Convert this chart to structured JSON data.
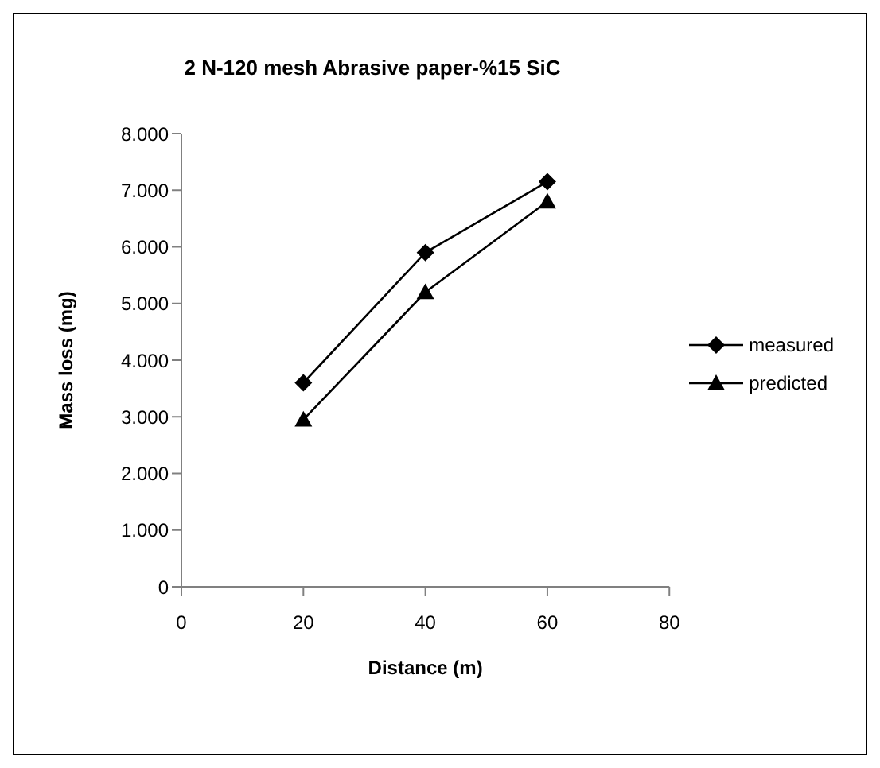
{
  "chart_data": {
    "type": "line",
    "title": "2 N-120 mesh Abrasive paper-%15 SiC",
    "xlabel": "Distance (m)",
    "ylabel": "Mass loss (mg)",
    "x": [
      20,
      40,
      60
    ],
    "series": [
      {
        "name": "measured",
        "color": "#000000",
        "values": [
          3600,
          5900,
          7150
        ],
        "marker": "diamond"
      },
      {
        "name": "predicted",
        "color": "#000000",
        "values": [
          2950,
          5200,
          6800
        ],
        "marker": "triangle"
      }
    ],
    "xlim": [
      0,
      80
    ],
    "xticks": [
      0,
      20,
      40,
      60,
      80
    ],
    "ylim": [
      0,
      8000
    ],
    "yticks": [
      0,
      {
        "value": 1000,
        "label": "1.000"
      },
      {
        "value": 2000,
        "label": "2.000"
      },
      {
        "value": 3000,
        "label": "3.000"
      },
      {
        "value": 4000,
        "label": "4.000"
      },
      {
        "value": 5000,
        "label": "5.000"
      },
      {
        "value": 6000,
        "label": "6.000"
      },
      {
        "value": 7000,
        "label": "7.000"
      },
      {
        "value": 8000,
        "label": "8.000"
      }
    ],
    "grid": false,
    "legend": "right",
    "line_style": "solid"
  }
}
